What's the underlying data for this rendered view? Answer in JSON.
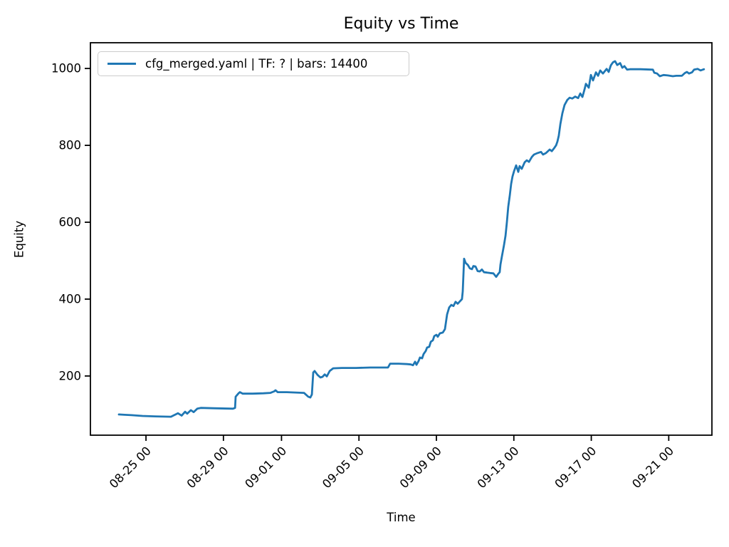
{
  "chart_data": {
    "type": "line",
    "title": "Equity vs Time",
    "xlabel": "Time",
    "ylabel": "Equity",
    "legend": {
      "entries": [
        "cfg_merged.yaml | TF: ? | bars: 14400"
      ],
      "position": "upper left"
    },
    "line_color": "#1f77b4",
    "grid": false,
    "x_axis": {
      "unit": "days relative to 08-25 00:00",
      "lim": [
        -2.87,
        29.23
      ],
      "ticks": [
        {
          "label": "08-25 00",
          "d": 0
        },
        {
          "label": "08-29 00",
          "d": 4
        },
        {
          "label": "09-01 00",
          "d": 7
        },
        {
          "label": "09-05 00",
          "d": 11
        },
        {
          "label": "09-09 00",
          "d": 15
        },
        {
          "label": "09-13 00",
          "d": 19
        },
        {
          "label": "09-17 00",
          "d": 23
        },
        {
          "label": "09-21 00",
          "d": 27
        }
      ]
    },
    "y_axis": {
      "lim": [
        46,
        1067
      ],
      "ticks": [
        {
          "label": "200",
          "v": 200
        },
        {
          "label": "400",
          "v": 400
        },
        {
          "label": "600",
          "v": 600
        },
        {
          "label": "800",
          "v": 800
        },
        {
          "label": "1000",
          "v": 1000
        }
      ]
    },
    "series": [
      {
        "name": "cfg_merged.yaml | TF: ? | bars: 14400",
        "points": [
          [
            -1.4,
            100
          ],
          [
            -1.1,
            99
          ],
          [
            -0.74,
            98
          ],
          [
            -0.18,
            96
          ],
          [
            0.48,
            95
          ],
          [
            1.29,
            94
          ],
          [
            1.65,
            103
          ],
          [
            1.84,
            97
          ],
          [
            2.02,
            107
          ],
          [
            2.13,
            102
          ],
          [
            2.32,
            111
          ],
          [
            2.46,
            106
          ],
          [
            2.65,
            115
          ],
          [
            2.83,
            117
          ],
          [
            3.49,
            116
          ],
          [
            4.49,
            115
          ],
          [
            4.6,
            117
          ],
          [
            4.63,
            146
          ],
          [
            4.78,
            155
          ],
          [
            4.85,
            158
          ],
          [
            5.0,
            154
          ],
          [
            5.51,
            154
          ],
          [
            6.07,
            155
          ],
          [
            6.43,
            156
          ],
          [
            6.62,
            160
          ],
          [
            6.69,
            163
          ],
          [
            6.8,
            158
          ],
          [
            7.28,
            158
          ],
          [
            7.72,
            157
          ],
          [
            8.16,
            156
          ],
          [
            8.38,
            146
          ],
          [
            8.49,
            144
          ],
          [
            8.57,
            152
          ],
          [
            8.64,
            209
          ],
          [
            8.71,
            213
          ],
          [
            8.86,
            203
          ],
          [
            9.01,
            196
          ],
          [
            9.12,
            198
          ],
          [
            9.23,
            204
          ],
          [
            9.34,
            199
          ],
          [
            9.49,
            213
          ],
          [
            9.67,
            220
          ],
          [
            10.11,
            221
          ],
          [
            10.85,
            221
          ],
          [
            11.58,
            222
          ],
          [
            12.5,
            222
          ],
          [
            12.61,
            232
          ],
          [
            13.05,
            232
          ],
          [
            13.49,
            231
          ],
          [
            13.68,
            230
          ],
          [
            13.79,
            228
          ],
          [
            13.9,
            237
          ],
          [
            13.97,
            229
          ],
          [
            14.08,
            239
          ],
          [
            14.15,
            248
          ],
          [
            14.26,
            246
          ],
          [
            14.34,
            257
          ],
          [
            14.45,
            265
          ],
          [
            14.52,
            274
          ],
          [
            14.63,
            276
          ],
          [
            14.71,
            289
          ],
          [
            14.82,
            293
          ],
          [
            14.89,
            304
          ],
          [
            15.0,
            307
          ],
          [
            15.07,
            302
          ],
          [
            15.18,
            311
          ],
          [
            15.33,
            313
          ],
          [
            15.44,
            322
          ],
          [
            15.55,
            360
          ],
          [
            15.66,
            378
          ],
          [
            15.77,
            385
          ],
          [
            15.88,
            382
          ],
          [
            15.99,
            393
          ],
          [
            16.1,
            388
          ],
          [
            16.21,
            394
          ],
          [
            16.32,
            400
          ],
          [
            16.36,
            420
          ],
          [
            16.43,
            505
          ],
          [
            16.51,
            494
          ],
          [
            16.62,
            489
          ],
          [
            16.73,
            480
          ],
          [
            16.84,
            478
          ],
          [
            16.91,
            486
          ],
          [
            17.02,
            485
          ],
          [
            17.13,
            473
          ],
          [
            17.24,
            472
          ],
          [
            17.35,
            477
          ],
          [
            17.46,
            470
          ],
          [
            17.61,
            469
          ],
          [
            17.76,
            468
          ],
          [
            17.94,
            467
          ],
          [
            18.09,
            458
          ],
          [
            18.2,
            466
          ],
          [
            18.27,
            470
          ],
          [
            18.31,
            490
          ],
          [
            18.38,
            510
          ],
          [
            18.49,
            540
          ],
          [
            18.57,
            565
          ],
          [
            18.64,
            600
          ],
          [
            18.71,
            640
          ],
          [
            18.79,
            670
          ],
          [
            18.86,
            700
          ],
          [
            18.93,
            719
          ],
          [
            19.01,
            733
          ],
          [
            19.12,
            748
          ],
          [
            19.23,
            731
          ],
          [
            19.3,
            746
          ],
          [
            19.41,
            739
          ],
          [
            19.56,
            756
          ],
          [
            19.67,
            761
          ],
          [
            19.78,
            757
          ],
          [
            19.93,
            770
          ],
          [
            20.04,
            776
          ],
          [
            20.22,
            780
          ],
          [
            20.4,
            783
          ],
          [
            20.51,
            776
          ],
          [
            20.66,
            780
          ],
          [
            20.85,
            789
          ],
          [
            20.96,
            785
          ],
          [
            21.07,
            792
          ],
          [
            21.18,
            800
          ],
          [
            21.25,
            810
          ],
          [
            21.32,
            825
          ],
          [
            21.4,
            855
          ],
          [
            21.51,
            884
          ],
          [
            21.62,
            905
          ],
          [
            21.76,
            918
          ],
          [
            21.88,
            924
          ],
          [
            22.02,
            922
          ],
          [
            22.17,
            927
          ],
          [
            22.32,
            923
          ],
          [
            22.43,
            935
          ],
          [
            22.54,
            926
          ],
          [
            22.65,
            945
          ],
          [
            22.72,
            960
          ],
          [
            22.87,
            950
          ],
          [
            22.98,
            983
          ],
          [
            23.09,
            969
          ],
          [
            23.24,
            990
          ],
          [
            23.35,
            981
          ],
          [
            23.46,
            995
          ],
          [
            23.6,
            987
          ],
          [
            23.79,
            999
          ],
          [
            23.9,
            991
          ],
          [
            24.01,
            1008
          ],
          [
            24.12,
            1016
          ],
          [
            24.23,
            1019
          ],
          [
            24.34,
            1009
          ],
          [
            24.49,
            1014
          ],
          [
            24.6,
            1002
          ],
          [
            24.71,
            1006
          ],
          [
            24.85,
            997
          ],
          [
            25.0,
            998
          ],
          [
            25.55,
            998
          ],
          [
            26.18,
            997
          ],
          [
            26.25,
            989
          ],
          [
            26.4,
            987
          ],
          [
            26.54,
            980
          ],
          [
            26.73,
            983
          ],
          [
            26.95,
            982
          ],
          [
            27.21,
            980
          ],
          [
            27.39,
            981
          ],
          [
            27.68,
            981
          ],
          [
            27.83,
            988
          ],
          [
            27.94,
            991
          ],
          [
            28.05,
            987
          ],
          [
            28.2,
            990
          ],
          [
            28.31,
            997
          ],
          [
            28.49,
            999
          ],
          [
            28.64,
            995
          ],
          [
            28.82,
            998
          ]
        ]
      }
    ]
  }
}
